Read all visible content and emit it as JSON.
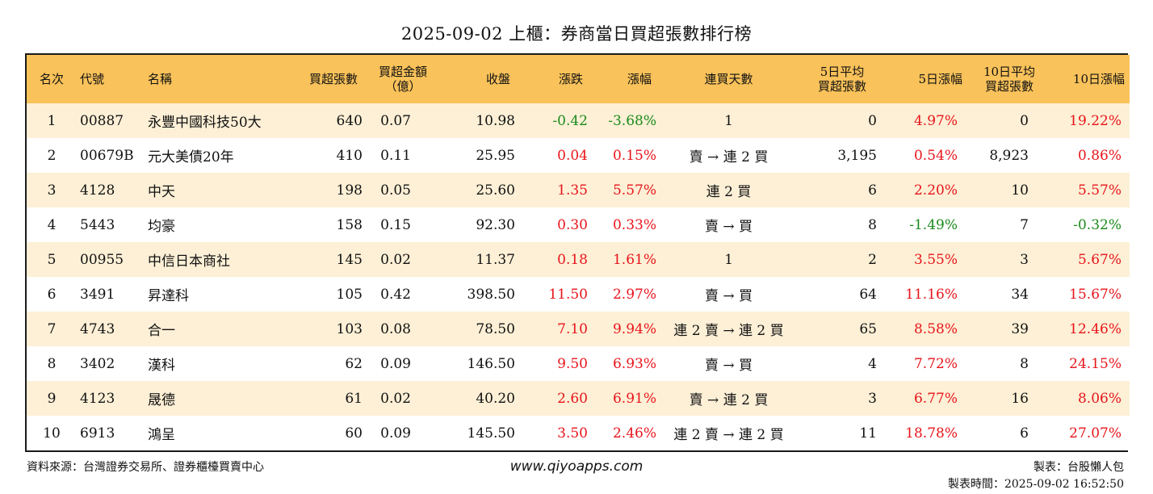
{
  "title": "2025-09-02 上櫃：券商當日買超張數排行榜",
  "headers": {
    "rank": "名次",
    "code": "代號",
    "name": "名稱",
    "net_buy_lots": "買超張數",
    "net_buy_amount_l1": "買超金額",
    "net_buy_amount_l2": "（億）",
    "close": "收盤",
    "change": "漲跌",
    "pct": "漲幅",
    "streak": "連買天數",
    "avg5_l1": "5日平均",
    "avg5_l2": "買超張數",
    "pct5": "5日漲幅",
    "avg10_l1": "10日平均",
    "avg10_l2": "買超張數",
    "pct10": "10日漲幅"
  },
  "rows": [
    {
      "rank": "1",
      "code": "00887",
      "name": "永豐中國科技50大",
      "lots": "640",
      "amount": "0.07",
      "close": "10.98",
      "change": "-0.42",
      "change_dir": "down",
      "pct": "-3.68%",
      "pct_dir": "down",
      "streak": "1",
      "avg5": "0",
      "pct5": "4.97%",
      "pct5_dir": "up",
      "avg10": "0",
      "pct10": "19.22%",
      "pct10_dir": "up"
    },
    {
      "rank": "2",
      "code": "00679B",
      "name": "元大美債20年",
      "lots": "410",
      "amount": "0.11",
      "close": "25.95",
      "change": "0.04",
      "change_dir": "up",
      "pct": "0.15%",
      "pct_dir": "up",
      "streak": "賣 → 連 2 買",
      "avg5": "3,195",
      "pct5": "0.54%",
      "pct5_dir": "up",
      "avg10": "8,923",
      "pct10": "0.86%",
      "pct10_dir": "up"
    },
    {
      "rank": "3",
      "code": "4128",
      "name": "中天",
      "lots": "198",
      "amount": "0.05",
      "close": "25.60",
      "change": "1.35",
      "change_dir": "up",
      "pct": "5.57%",
      "pct_dir": "up",
      "streak": "連 2 買",
      "avg5": "6",
      "pct5": "2.20%",
      "pct5_dir": "up",
      "avg10": "10",
      "pct10": "5.57%",
      "pct10_dir": "up"
    },
    {
      "rank": "4",
      "code": "5443",
      "name": "均豪",
      "lots": "158",
      "amount": "0.15",
      "close": "92.30",
      "change": "0.30",
      "change_dir": "up",
      "pct": "0.33%",
      "pct_dir": "up",
      "streak": "賣 → 買",
      "avg5": "8",
      "pct5": "-1.49%",
      "pct5_dir": "down",
      "avg10": "7",
      "pct10": "-0.32%",
      "pct10_dir": "down"
    },
    {
      "rank": "5",
      "code": "00955",
      "name": "中信日本商社",
      "lots": "145",
      "amount": "0.02",
      "close": "11.37",
      "change": "0.18",
      "change_dir": "up",
      "pct": "1.61%",
      "pct_dir": "up",
      "streak": "1",
      "avg5": "2",
      "pct5": "3.55%",
      "pct5_dir": "up",
      "avg10": "3",
      "pct10": "5.67%",
      "pct10_dir": "up"
    },
    {
      "rank": "6",
      "code": "3491",
      "name": "昇達科",
      "lots": "105",
      "amount": "0.42",
      "close": "398.50",
      "change": "11.50",
      "change_dir": "up",
      "pct": "2.97%",
      "pct_dir": "up",
      "streak": "賣 → 買",
      "avg5": "64",
      "pct5": "11.16%",
      "pct5_dir": "up",
      "avg10": "34",
      "pct10": "15.67%",
      "pct10_dir": "up"
    },
    {
      "rank": "7",
      "code": "4743",
      "name": "合一",
      "lots": "103",
      "amount": "0.08",
      "close": "78.50",
      "change": "7.10",
      "change_dir": "up",
      "pct": "9.94%",
      "pct_dir": "up",
      "streak": "連 2 賣 → 連 2 買",
      "avg5": "65",
      "pct5": "8.58%",
      "pct5_dir": "up",
      "avg10": "39",
      "pct10": "12.46%",
      "pct10_dir": "up"
    },
    {
      "rank": "8",
      "code": "3402",
      "name": "漢科",
      "lots": "62",
      "amount": "0.09",
      "close": "146.50",
      "change": "9.50",
      "change_dir": "up",
      "pct": "6.93%",
      "pct_dir": "up",
      "streak": "賣 → 買",
      "avg5": "4",
      "pct5": "7.72%",
      "pct5_dir": "up",
      "avg10": "8",
      "pct10": "24.15%",
      "pct10_dir": "up"
    },
    {
      "rank": "9",
      "code": "4123",
      "name": "晟德",
      "lots": "61",
      "amount": "0.02",
      "close": "40.20",
      "change": "2.60",
      "change_dir": "up",
      "pct": "6.91%",
      "pct_dir": "up",
      "streak": "賣 → 連 2 買",
      "avg5": "3",
      "pct5": "6.77%",
      "pct5_dir": "up",
      "avg10": "16",
      "pct10": "8.06%",
      "pct10_dir": "up"
    },
    {
      "rank": "10",
      "code": "6913",
      "name": "鴻呈",
      "lots": "60",
      "amount": "0.09",
      "close": "145.50",
      "change": "3.50",
      "change_dir": "up",
      "pct": "2.46%",
      "pct_dir": "up",
      "streak": "連 2 賣 → 連 2 買",
      "avg5": "11",
      "pct5": "18.78%",
      "pct5_dir": "up",
      "avg10": "6",
      "pct10": "27.07%",
      "pct10_dir": "up"
    }
  ],
  "footer": {
    "source": "資料來源：台灣證券交易所、證券櫃檯買賣中心",
    "website": "www.qiyoapps.com",
    "maker": "製表：台股懶人包",
    "made_time": "製表時間：2025-09-02 16:52:50"
  },
  "colors": {
    "header_bg": "#f9c25a",
    "odd_row_bg": "#fdf0d6",
    "up": "#e8141b",
    "down": "#1b8a1b"
  }
}
